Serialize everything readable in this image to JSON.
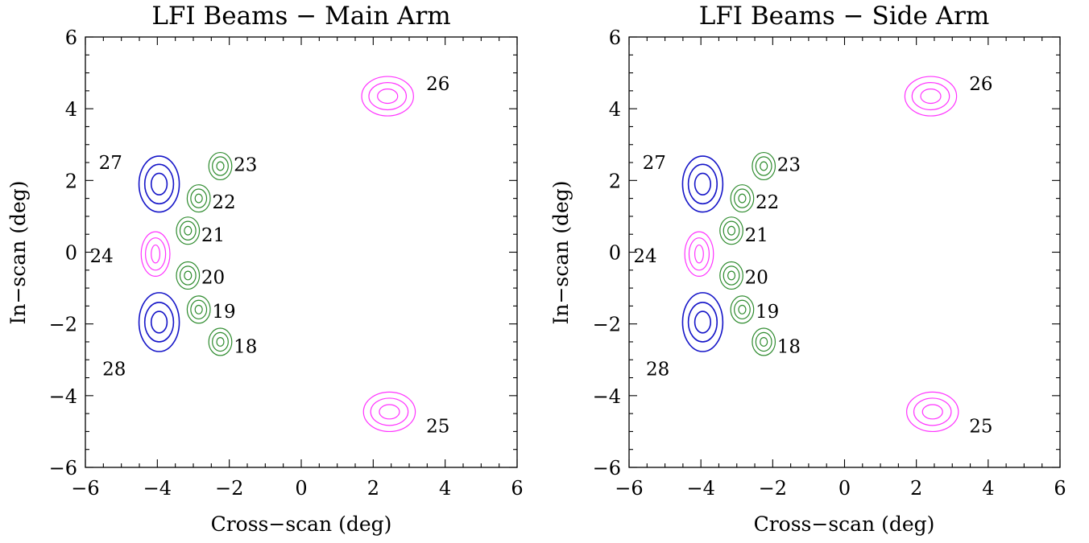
{
  "chart_data": [
    {
      "type": "contour",
      "title": "LFI Beams − Main Arm",
      "xlabel": "Cross−scan (deg)",
      "ylabel": "In−scan (deg)",
      "xlim": [
        -6,
        6
      ],
      "ylim": [
        -6,
        6
      ],
      "xticks": [
        -6,
        -4,
        -2,
        0,
        2,
        4,
        6
      ],
      "yticks": [
        -6,
        -4,
        -2,
        0,
        2,
        4,
        6
      ],
      "tick_labels": [
        "−6",
        "−4",
        "−2",
        "0",
        "2",
        "4",
        "6"
      ],
      "grid": false,
      "beams": [
        {
          "id": "18",
          "x": -2.25,
          "y": -2.5,
          "group": "green",
          "rx": [
            0.1,
            0.22,
            0.32
          ],
          "ry": [
            0.12,
            0.26,
            0.38
          ],
          "label": {
            "text": "18",
            "x": -1.55,
            "y": -2.62
          }
        },
        {
          "id": "19",
          "x": -2.85,
          "y": -1.6,
          "group": "green",
          "rx": [
            0.1,
            0.22,
            0.32
          ],
          "ry": [
            0.12,
            0.26,
            0.38
          ],
          "label": {
            "text": "19",
            "x": -2.15,
            "y": -1.65
          }
        },
        {
          "id": "20",
          "x": -3.15,
          "y": -0.65,
          "group": "green",
          "rx": [
            0.1,
            0.22,
            0.32
          ],
          "ry": [
            0.12,
            0.26,
            0.38
          ],
          "label": {
            "text": "20",
            "x": -2.45,
            "y": -0.7
          }
        },
        {
          "id": "21",
          "x": -3.15,
          "y": 0.6,
          "group": "green",
          "rx": [
            0.1,
            0.22,
            0.32
          ],
          "ry": [
            0.12,
            0.26,
            0.38
          ],
          "label": {
            "text": "21",
            "x": -2.45,
            "y": 0.48
          }
        },
        {
          "id": "22",
          "x": -2.85,
          "y": 1.5,
          "group": "green",
          "rx": [
            0.1,
            0.22,
            0.32
          ],
          "ry": [
            0.12,
            0.26,
            0.38
          ],
          "label": {
            "text": "22",
            "x": -2.15,
            "y": 1.4
          }
        },
        {
          "id": "23",
          "x": -2.25,
          "y": 2.4,
          "group": "green",
          "rx": [
            0.1,
            0.22,
            0.32
          ],
          "ry": [
            0.12,
            0.26,
            0.38
          ],
          "label": {
            "text": "23",
            "x": -1.55,
            "y": 2.45
          }
        },
        {
          "id": "24",
          "x": -4.05,
          "y": -0.05,
          "group": "magenta",
          "rx": [
            0.12,
            0.28,
            0.4
          ],
          "ry": [
            0.25,
            0.45,
            0.62
          ],
          "label": {
            "text": "24",
            "x": -5.55,
            "y": -0.1
          }
        },
        {
          "id": "27",
          "x": -3.95,
          "y": 1.9,
          "group": "blue",
          "rx": [
            0.22,
            0.4,
            0.56
          ],
          "ry": [
            0.3,
            0.55,
            0.78
          ],
          "label": {
            "text": "27",
            "x": -5.3,
            "y": 2.5
          }
        },
        {
          "id": "28",
          "x": -3.95,
          "y": -1.95,
          "group": "blue",
          "rx": [
            0.22,
            0.4,
            0.56
          ],
          "ry": [
            0.3,
            0.55,
            0.82
          ],
          "label": {
            "text": "28",
            "x": -5.2,
            "y": -3.25
          }
        },
        {
          "id": "25",
          "x": 2.45,
          "y": -4.45,
          "group": "magenta",
          "rx": [
            0.28,
            0.52,
            0.72
          ],
          "ry": [
            0.2,
            0.38,
            0.55
          ],
          "label": {
            "text": "25",
            "x": 3.8,
            "y": -4.85
          }
        },
        {
          "id": "26",
          "x": 2.4,
          "y": 4.35,
          "group": "magenta",
          "rx": [
            0.28,
            0.52,
            0.72
          ],
          "ry": [
            0.2,
            0.38,
            0.55
          ],
          "label": {
            "text": "26",
            "x": 3.8,
            "y": 4.7
          }
        }
      ]
    },
    {
      "type": "contour",
      "title": "LFI Beams − Side Arm",
      "xlabel": "Cross−scan (deg)",
      "ylabel": "In−scan (deg)",
      "xlim": [
        -6,
        6
      ],
      "ylim": [
        -6,
        6
      ],
      "xticks": [
        -6,
        -4,
        -2,
        0,
        2,
        4,
        6
      ],
      "yticks": [
        -6,
        -4,
        -2,
        0,
        2,
        4,
        6
      ],
      "tick_labels": [
        "−6",
        "−4",
        "−2",
        "0",
        "2",
        "4",
        "6"
      ],
      "grid": false,
      "beams": [
        {
          "id": "18",
          "x": -2.25,
          "y": -2.5,
          "group": "green",
          "rx": [
            0.1,
            0.22,
            0.32
          ],
          "ry": [
            0.12,
            0.26,
            0.38
          ],
          "label": {
            "text": "18",
            "x": -1.55,
            "y": -2.62
          }
        },
        {
          "id": "19",
          "x": -2.85,
          "y": -1.6,
          "group": "green",
          "rx": [
            0.1,
            0.22,
            0.32
          ],
          "ry": [
            0.12,
            0.26,
            0.38
          ],
          "label": {
            "text": "19",
            "x": -2.15,
            "y": -1.65
          }
        },
        {
          "id": "20",
          "x": -3.15,
          "y": -0.65,
          "group": "green",
          "rx": [
            0.1,
            0.22,
            0.32
          ],
          "ry": [
            0.12,
            0.26,
            0.38
          ],
          "label": {
            "text": "20",
            "x": -2.45,
            "y": -0.7
          }
        },
        {
          "id": "21",
          "x": -3.15,
          "y": 0.6,
          "group": "green",
          "rx": [
            0.1,
            0.22,
            0.32
          ],
          "ry": [
            0.12,
            0.26,
            0.38
          ],
          "label": {
            "text": "21",
            "x": -2.45,
            "y": 0.48
          }
        },
        {
          "id": "22",
          "x": -2.85,
          "y": 1.5,
          "group": "green",
          "rx": [
            0.1,
            0.22,
            0.32
          ],
          "ry": [
            0.12,
            0.26,
            0.38
          ],
          "label": {
            "text": "22",
            "x": -2.15,
            "y": 1.4
          }
        },
        {
          "id": "23",
          "x": -2.25,
          "y": 2.4,
          "group": "green",
          "rx": [
            0.1,
            0.22,
            0.32
          ],
          "ry": [
            0.12,
            0.26,
            0.38
          ],
          "label": {
            "text": "23",
            "x": -1.55,
            "y": 2.45
          }
        },
        {
          "id": "24",
          "x": -4.05,
          "y": -0.05,
          "group": "magenta",
          "rx": [
            0.12,
            0.28,
            0.4
          ],
          "ry": [
            0.25,
            0.45,
            0.62
          ],
          "label": {
            "text": "24",
            "x": -5.55,
            "y": -0.1
          }
        },
        {
          "id": "27",
          "x": -3.95,
          "y": 1.9,
          "group": "blue",
          "rx": [
            0.22,
            0.4,
            0.56
          ],
          "ry": [
            0.3,
            0.55,
            0.78
          ],
          "label": {
            "text": "27",
            "x": -5.3,
            "y": 2.5
          }
        },
        {
          "id": "28",
          "x": -3.95,
          "y": -1.95,
          "group": "blue",
          "rx": [
            0.22,
            0.4,
            0.56
          ],
          "ry": [
            0.3,
            0.55,
            0.82
          ],
          "label": {
            "text": "28",
            "x": -5.2,
            "y": -3.25
          }
        },
        {
          "id": "25",
          "x": 2.45,
          "y": -4.45,
          "group": "magenta",
          "rx": [
            0.28,
            0.52,
            0.72
          ],
          "ry": [
            0.2,
            0.38,
            0.55
          ],
          "label": {
            "text": "25",
            "x": 3.8,
            "y": -4.85
          }
        },
        {
          "id": "26",
          "x": 2.4,
          "y": 4.35,
          "group": "magenta",
          "rx": [
            0.28,
            0.52,
            0.72
          ],
          "ry": [
            0.2,
            0.38,
            0.55
          ],
          "label": {
            "text": "26",
            "x": 3.8,
            "y": 4.7
          }
        }
      ]
    }
  ],
  "colors": {
    "green": "#2e8b2e",
    "blue": "#1515c8",
    "magenta": "#ff33ff",
    "axis": "#000000"
  }
}
